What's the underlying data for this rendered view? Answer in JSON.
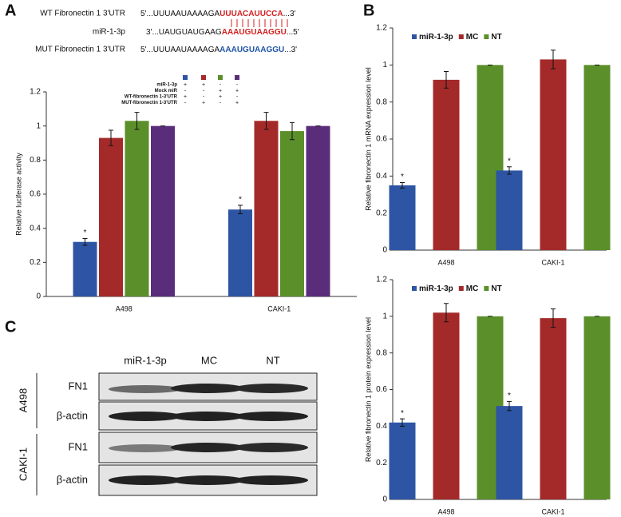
{
  "panel_labels": [
    "A",
    "B",
    "C"
  ],
  "sequences": [
    {
      "label": "WT Fibronectin 1 3'UTR",
      "parts": [
        "5'...UUUAAUAAAAGA",
        "UUUACAUUCCA",
        "...3'"
      ]
    },
    {
      "label": "miR-1-3p",
      "parts": [
        "3'...UAUGUAUGAAG",
        "AAAUGUAAGGU",
        "...5'"
      ]
    },
    {
      "label": "MUT Fibronectin 1 3'UTR",
      "parts": [
        "5'...UUUAAUAAAAGA",
        "AAAUGUAAGGU",
        "...3'"
      ]
    }
  ],
  "blot": {
    "lanes": [
      "miR-1-3p",
      "MC",
      "NT"
    ],
    "groups": [
      {
        "name": "A498",
        "rows": [
          "FN1",
          "β-actin"
        ]
      },
      {
        "name": "CAKI-1",
        "rows": [
          "FN1",
          "β-actin"
        ]
      }
    ]
  },
  "chart_data": [
    {
      "type": "bar",
      "y_label": "Relative luciferase activity",
      "categories": [
        "A498",
        "CAKI-1"
      ],
      "series": [
        {
          "color": "#2e55a4",
          "values": [
            0.32,
            0.51
          ],
          "errors": [
            0.02,
            0.025
          ]
        },
        {
          "color": "#a42a2a",
          "values": [
            0.93,
            1.03
          ],
          "errors": [
            0.045,
            0.05
          ]
        },
        {
          "color": "#5b8f2a",
          "values": [
            1.03,
            0.97
          ],
          "errors": [
            0.05,
            0.05
          ]
        },
        {
          "color": "#5a2d7a",
          "values": [
            1.0,
            1.0
          ],
          "errors": [
            0,
            0
          ]
        }
      ],
      "significance": [
        "*",
        "*"
      ],
      "legend_table": [
        {
          "label": "miR-1-3p",
          "marks": [
            "+",
            "+",
            "-",
            "-"
          ]
        },
        {
          "label": "Mock miR",
          "marks": [
            "-",
            "-",
            "+",
            "+"
          ]
        },
        {
          "label": "WT-fibronectin 1-3'UTR",
          "marks": [
            "+",
            "-",
            "+",
            "-"
          ]
        },
        {
          "label": "MUT-fibronectin 1-3'UTR",
          "marks": [
            "-",
            "+",
            "-",
            "+"
          ]
        }
      ],
      "ylim": [
        0,
        1.2
      ],
      "yticks": [
        0,
        0.2,
        0.4,
        0.6,
        0.8,
        1,
        1.2
      ]
    },
    {
      "type": "bar",
      "y_label": "Relative fibronectin 1 mRNA expression level",
      "categories": [
        "A498",
        "CAKI-1"
      ],
      "series": [
        {
          "name": "miR-1-3p",
          "color": "#2e55a4",
          "values": [
            0.35,
            0.43
          ],
          "errors": [
            0.015,
            0.02
          ]
        },
        {
          "name": "MC",
          "color": "#a42a2a",
          "values": [
            0.92,
            1.03
          ],
          "errors": [
            0.045,
            0.05
          ]
        },
        {
          "name": "NT",
          "color": "#5b8f2a",
          "values": [
            1.0,
            1.0
          ],
          "errors": [
            0,
            0
          ]
        }
      ],
      "significance": [
        "*",
        "*"
      ],
      "legend": "upper left",
      "ylim": [
        0,
        1.2
      ],
      "yticks": [
        0,
        0.2,
        0.4,
        0.6,
        0.8,
        1,
        1.2
      ]
    },
    {
      "type": "bar",
      "y_label": "Relative fibronectin 1 protein expression level",
      "categories": [
        "A498",
        "CAKI-1"
      ],
      "series": [
        {
          "name": "miR-1-3p",
          "color": "#2e55a4",
          "values": [
            0.42,
            0.51
          ],
          "errors": [
            0.02,
            0.025
          ]
        },
        {
          "name": "MC",
          "color": "#a42a2a",
          "values": [
            1.02,
            0.99
          ],
          "errors": [
            0.05,
            0.05
          ]
        },
        {
          "name": "NT",
          "color": "#5b8f2a",
          "values": [
            1.0,
            1.0
          ],
          "errors": [
            0,
            0
          ]
        }
      ],
      "significance": [
        "*",
        "*"
      ],
      "legend": "upper left",
      "ylim": [
        0,
        1.2
      ],
      "yticks": [
        0,
        0.2,
        0.4,
        0.6,
        0.8,
        1,
        1.2
      ]
    }
  ]
}
